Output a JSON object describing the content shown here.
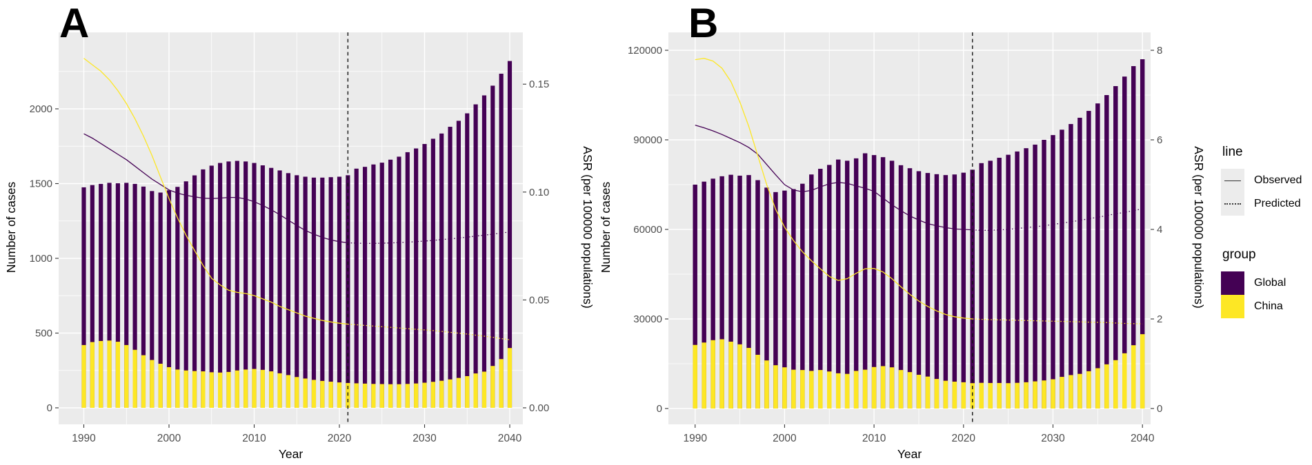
{
  "legend": {
    "line_title": "line",
    "observed_label": "Observed",
    "predicted_label": "Predicted",
    "group_title": "group",
    "global_label": "Global",
    "china_label": "China"
  },
  "colors": {
    "global": "#440154",
    "china": "#FDE725",
    "panel_bg": "#EBEBEB",
    "grid": "#FFFFFF",
    "axis_text": "#4D4D4D",
    "tick": "#333333",
    "vline": "#111111",
    "legend_key_bg": "#ECECEC"
  },
  "chart_data": [
    {
      "type": "bar",
      "label": "A",
      "title": "",
      "xlabel": "Year",
      "ylabel_left": "Number of cases",
      "ylabel_right": "ASR (per 100000 populations)",
      "x_start": 1990,
      "x_end": 2040,
      "x_ticks": [
        1990,
        2000,
        2010,
        2020,
        2030,
        2040
      ],
      "vline_year": 2021,
      "y_left_ticks": [
        0,
        500,
        1000,
        1500,
        2000
      ],
      "y_left_tick_labels": [
        "0",
        "500",
        "1000",
        "1500",
        "2000"
      ],
      "y_left_max": 2495,
      "y_right_ticks": [
        0,
        0.05,
        0.1,
        0.15
      ],
      "y_right_tick_labels": [
        "0.00",
        "0.05",
        "0.10",
        "0.15"
      ],
      "series": [
        {
          "name": "Global cases",
          "type": "bar",
          "axis": "left",
          "color_key": "global",
          "x_start": 1990,
          "values": [
            1475,
            1490,
            1498,
            1505,
            1502,
            1505,
            1498,
            1480,
            1450,
            1440,
            1455,
            1478,
            1515,
            1555,
            1595,
            1620,
            1638,
            1648,
            1652,
            1648,
            1638,
            1622,
            1605,
            1588,
            1570,
            1556,
            1546,
            1540,
            1540,
            1543,
            1546,
            1556,
            1600,
            1612,
            1628,
            1640,
            1660,
            1680,
            1710,
            1735,
            1765,
            1800,
            1835,
            1880,
            1920,
            1970,
            2030,
            2090,
            2155,
            2235,
            2320
          ]
        },
        {
          "name": "China cases",
          "type": "bar",
          "axis": "left",
          "color_key": "china",
          "x_start": 1990,
          "values": [
            420,
            440,
            447,
            450,
            442,
            420,
            388,
            352,
            320,
            295,
            272,
            256,
            250,
            246,
            244,
            238,
            236,
            240,
            250,
            256,
            260,
            254,
            244,
            231,
            219,
            206,
            196,
            187,
            180,
            175,
            170,
            166,
            164,
            162,
            160,
            159,
            158,
            158,
            160,
            163,
            168,
            174,
            181,
            190,
            200,
            212,
            230,
            242,
            280,
            326,
            400
          ]
        },
        {
          "name": "Global ASR observed",
          "type": "line",
          "style": "solid",
          "axis": "right",
          "color_key": "global",
          "x_start": 1990,
          "values": [
            0.127,
            0.125,
            0.1225,
            0.12,
            0.1175,
            0.115,
            0.112,
            0.109,
            0.106,
            0.1035,
            0.101,
            0.0995,
            0.0985,
            0.0978,
            0.0972,
            0.097,
            0.0972,
            0.0975,
            0.0975,
            0.0968,
            0.0955,
            0.0938,
            0.0918,
            0.0895,
            0.087,
            0.0845,
            0.0822,
            0.0805,
            0.079,
            0.0778,
            0.077,
            0.0765
          ]
        },
        {
          "name": "Global ASR predicted",
          "type": "line",
          "style": "dotted",
          "axis": "right",
          "color_key": "global",
          "x_start": 2021,
          "values": [
            0.0765,
            0.0763,
            0.0762,
            0.0762,
            0.0763,
            0.0764,
            0.0766,
            0.0768,
            0.077,
            0.0773,
            0.0776,
            0.078,
            0.0783,
            0.0787,
            0.0791,
            0.0796,
            0.08,
            0.0805,
            0.081,
            0.0815
          ]
        },
        {
          "name": "China ASR observed",
          "type": "line",
          "style": "solid",
          "axis": "right",
          "color_key": "china",
          "x_start": 1990,
          "values": [
            0.162,
            0.159,
            0.156,
            0.152,
            0.147,
            0.141,
            0.134,
            0.126,
            0.117,
            0.107,
            0.097,
            0.088,
            0.08,
            0.073,
            0.066,
            0.06,
            0.057,
            0.0545,
            0.0535,
            0.053,
            0.052,
            0.0505,
            0.049,
            0.047,
            0.0455,
            0.044,
            0.0425,
            0.0415,
            0.0405,
            0.0398,
            0.0392,
            0.0388
          ]
        },
        {
          "name": "China ASR predicted",
          "type": "line",
          "style": "dotted",
          "axis": "right",
          "color_key": "china",
          "x_start": 2021,
          "values": [
            0.0388,
            0.0385,
            0.0382,
            0.0379,
            0.0376,
            0.0373,
            0.037,
            0.0367,
            0.0364,
            0.0361,
            0.0358,
            0.0354,
            0.035,
            0.0346,
            0.0342,
            0.0337,
            0.0332,
            0.0327,
            0.0321,
            0.0315
          ]
        }
      ]
    },
    {
      "type": "bar",
      "label": "B",
      "title": "",
      "xlabel": "Year",
      "ylabel_left": "Number of cases",
      "ylabel_right": "ASR (per 100000 populations)",
      "x_start": 1990,
      "x_end": 2040,
      "x_ticks": [
        1990,
        2000,
        2010,
        2020,
        2030,
        2040
      ],
      "vline_year": 2021,
      "y_left_ticks": [
        0,
        30000,
        60000,
        90000,
        120000
      ],
      "y_left_tick_labels": [
        "0",
        "30000",
        "60000",
        "90000",
        "120000"
      ],
      "y_left_max": 126000,
      "y_right_ticks": [
        0,
        2,
        4,
        6,
        8
      ],
      "y_right_tick_labels": [
        "0",
        "2",
        "4",
        "6",
        "8"
      ],
      "series": [
        {
          "name": "Global cases",
          "type": "bar",
          "axis": "left",
          "color_key": "global",
          "x_start": 1990,
          "values": [
            75000,
            76000,
            77000,
            77800,
            78300,
            78000,
            78200,
            76500,
            74000,
            72500,
            73000,
            73500,
            75300,
            78400,
            80300,
            81600,
            83400,
            83000,
            83800,
            85500,
            84900,
            84200,
            83000,
            81500,
            80500,
            79500,
            78900,
            78500,
            78200,
            78400,
            79000,
            80000,
            82200,
            83000,
            84000,
            85000,
            86100,
            87200,
            88400,
            90000,
            91600,
            93400,
            95300,
            97400,
            99700,
            102200,
            105000,
            108000,
            111200,
            114700,
            117000
          ]
        },
        {
          "name": "China cases",
          "type": "bar",
          "axis": "left",
          "color_key": "china",
          "x_start": 1990,
          "values": [
            21300,
            22100,
            22900,
            23200,
            22400,
            21500,
            20300,
            18000,
            16100,
            14500,
            13800,
            13000,
            12900,
            12600,
            12900,
            12400,
            11800,
            11600,
            12600,
            13000,
            13900,
            14200,
            13800,
            12900,
            12200,
            11300,
            10700,
            9900,
            9300,
            9000,
            8800,
            8500,
            8600,
            8550,
            8550,
            8500,
            8600,
            8800,
            9100,
            9400,
            9800,
            10600,
            11200,
            11600,
            12500,
            13500,
            14800,
            16200,
            18500,
            21200,
            24900
          ]
        },
        {
          "name": "Global ASR observed",
          "type": "line",
          "style": "solid",
          "axis": "right",
          "color_key": "global",
          "x_start": 1990,
          "values": [
            6.33,
            6.27,
            6.2,
            6.12,
            6.03,
            5.94,
            5.83,
            5.68,
            5.45,
            5.22,
            5.0,
            4.88,
            4.84,
            4.87,
            4.95,
            5.02,
            5.05,
            5.03,
            4.97,
            4.92,
            4.85,
            4.7,
            4.55,
            4.42,
            4.3,
            4.21,
            4.13,
            4.08,
            4.04,
            4.01,
            4.0,
            3.99
          ]
        },
        {
          "name": "Global ASR predicted",
          "type": "line",
          "style": "dotted",
          "axis": "right",
          "color_key": "global",
          "x_start": 2021,
          "values": [
            3.99,
            3.98,
            3.98,
            3.99,
            4.0,
            4.02,
            4.04,
            4.06,
            4.08,
            4.11,
            4.14,
            4.17,
            4.2,
            4.24,
            4.27,
            4.31,
            4.35,
            4.38,
            4.42,
            4.46
          ]
        },
        {
          "name": "China ASR observed",
          "type": "line",
          "style": "solid",
          "axis": "right",
          "color_key": "china",
          "x_start": 1990,
          "values": [
            7.79,
            7.82,
            7.76,
            7.6,
            7.3,
            6.85,
            6.3,
            5.65,
            5.0,
            4.45,
            4.05,
            3.75,
            3.5,
            3.3,
            3.12,
            2.95,
            2.86,
            2.9,
            3.02,
            3.12,
            3.13,
            3.05,
            2.9,
            2.72,
            2.55,
            2.4,
            2.28,
            2.18,
            2.1,
            2.05,
            2.02,
            2.0
          ]
        },
        {
          "name": "China ASR predicted",
          "type": "line",
          "style": "dotted",
          "axis": "right",
          "color_key": "china",
          "x_start": 2021,
          "values": [
            2.0,
            1.99,
            1.985,
            1.98,
            1.975,
            1.97,
            1.965,
            1.96,
            1.955,
            1.95,
            1.945,
            1.94,
            1.935,
            1.93,
            1.925,
            1.92,
            1.91,
            1.9,
            1.895,
            1.89
          ]
        }
      ]
    }
  ]
}
